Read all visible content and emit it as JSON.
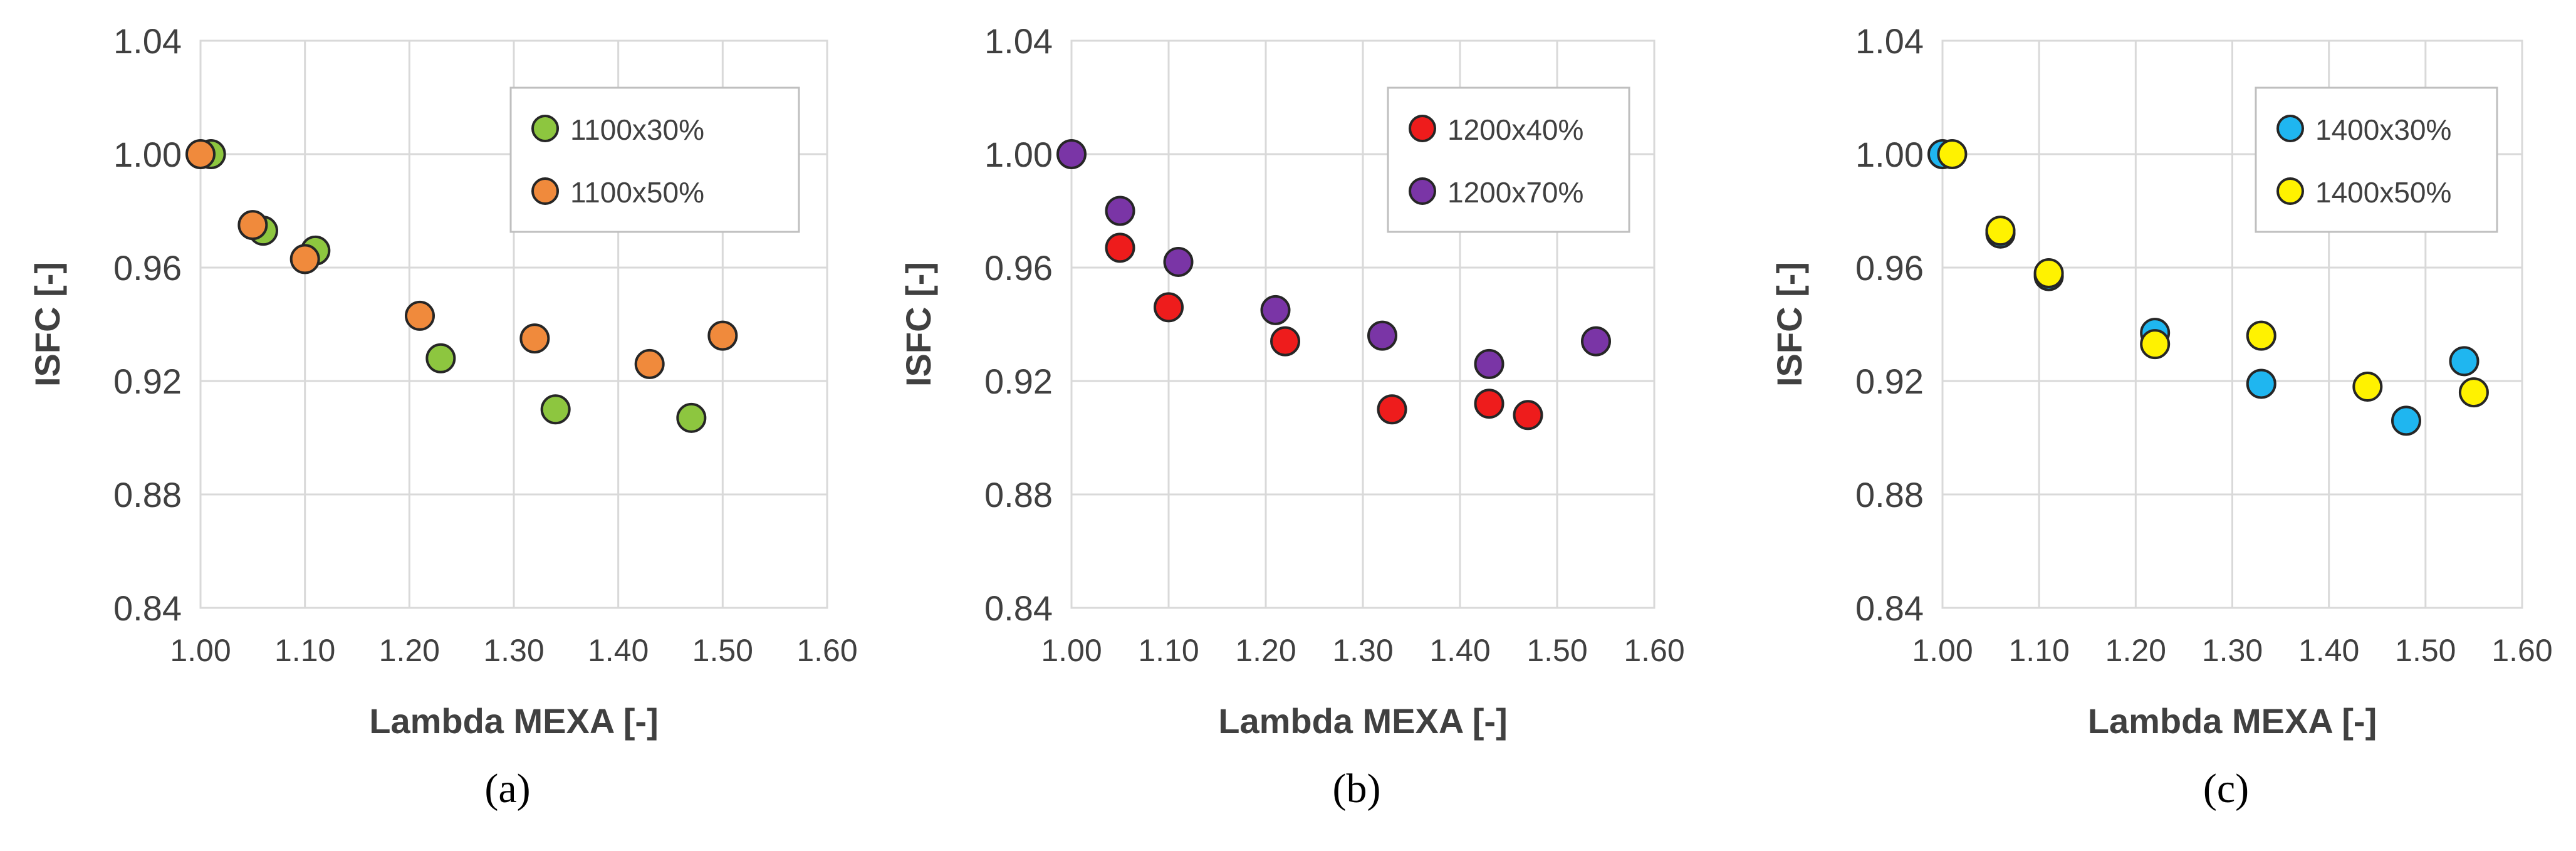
{
  "chart_data": [
    {
      "type": "scatter",
      "panel_label": "(a)",
      "xlabel": "Lambda MEXA [-]",
      "ylabel": "ISFC [-]",
      "xlim": [
        1.0,
        1.6
      ],
      "ylim": [
        0.84,
        1.04
      ],
      "xticks": [
        "1.00",
        "1.10",
        "1.20",
        "1.30",
        "1.40",
        "1.50",
        "1.60"
      ],
      "yticks": [
        "0.84",
        "0.88",
        "0.92",
        "0.96",
        "1.00",
        "1.04"
      ],
      "grid": true,
      "legend": "top-right",
      "series": [
        {
          "name": "1100x30%",
          "color": "#8dc63f",
          "points": [
            [
              1.01,
              1.0
            ],
            [
              1.06,
              0.973
            ],
            [
              1.11,
              0.966
            ],
            [
              1.23,
              0.928
            ],
            [
              1.34,
              0.91
            ],
            [
              1.47,
              0.907
            ]
          ]
        },
        {
          "name": "1100x50%",
          "color": "#f08a3c",
          "points": [
            [
              1.0,
              1.0
            ],
            [
              1.05,
              0.975
            ],
            [
              1.1,
              0.963
            ],
            [
              1.21,
              0.943
            ],
            [
              1.32,
              0.935
            ],
            [
              1.43,
              0.926
            ],
            [
              1.5,
              0.936
            ]
          ]
        }
      ]
    },
    {
      "type": "scatter",
      "panel_label": "(b)",
      "xlabel": "Lambda MEXA [-]",
      "ylabel": "ISFC [-]",
      "xlim": [
        1.0,
        1.6
      ],
      "ylim": [
        0.84,
        1.04
      ],
      "xticks": [
        "1.00",
        "1.10",
        "1.20",
        "1.30",
        "1.40",
        "1.50",
        "1.60"
      ],
      "yticks": [
        "0.84",
        "0.88",
        "0.92",
        "0.96",
        "1.00",
        "1.04"
      ],
      "grid": true,
      "legend": "top-right",
      "series": [
        {
          "name": "1200x40%",
          "color": "#ee1c1c",
          "points": [
            [
              1.05,
              0.967
            ],
            [
              1.1,
              0.946
            ],
            [
              1.22,
              0.934
            ],
            [
              1.33,
              0.91
            ],
            [
              1.43,
              0.912
            ],
            [
              1.47,
              0.908
            ]
          ]
        },
        {
          "name": "1200x70%",
          "color": "#7a35a6",
          "points": [
            [
              1.0,
              1.0
            ],
            [
              1.05,
              0.98
            ],
            [
              1.11,
              0.962
            ],
            [
              1.21,
              0.945
            ],
            [
              1.32,
              0.936
            ],
            [
              1.43,
              0.926
            ],
            [
              1.54,
              0.934
            ]
          ]
        }
      ]
    },
    {
      "type": "scatter",
      "panel_label": "(c)",
      "xlabel": "Lambda MEXA [-]",
      "ylabel": "ISFC [-]",
      "xlim": [
        1.0,
        1.6
      ],
      "ylim": [
        0.84,
        1.04
      ],
      "xticks": [
        "1.00",
        "1.10",
        "1.20",
        "1.30",
        "1.40",
        "1.50",
        "1.60"
      ],
      "yticks": [
        "0.84",
        "0.88",
        "0.92",
        "0.96",
        "1.00",
        "1.04"
      ],
      "grid": true,
      "legend": "top-right",
      "series": [
        {
          "name": "1400x30%",
          "color": "#1fb6f0",
          "points": [
            [
              1.0,
              1.0
            ],
            [
              1.06,
              0.972
            ],
            [
              1.11,
              0.957
            ],
            [
              1.22,
              0.937
            ],
            [
              1.33,
              0.919
            ],
            [
              1.48,
              0.906
            ],
            [
              1.54,
              0.927
            ]
          ]
        },
        {
          "name": "1400x50%",
          "color": "#fff200",
          "points": [
            [
              1.01,
              1.0
            ],
            [
              1.06,
              0.973
            ],
            [
              1.11,
              0.958
            ],
            [
              1.22,
              0.933
            ],
            [
              1.33,
              0.936
            ],
            [
              1.44,
              0.918
            ],
            [
              1.55,
              0.916
            ]
          ]
        }
      ]
    }
  ]
}
